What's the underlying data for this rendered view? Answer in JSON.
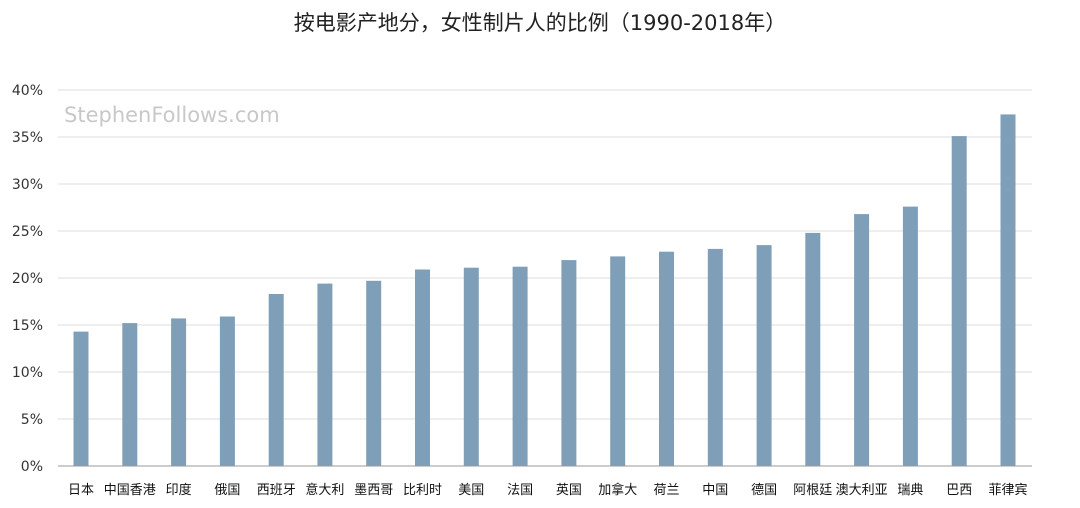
{
  "chart_data": {
    "type": "bar",
    "title": "按电影产地分，女性制片人的比例（1990-2018年）",
    "watermark": "StephenFollows.com",
    "xlabel": "",
    "ylabel": "",
    "ylim": [
      0,
      40
    ],
    "yticks": [
      0,
      5,
      10,
      15,
      20,
      25,
      30,
      35,
      40
    ],
    "ytick_labels": [
      "0%",
      "5%",
      "10%",
      "15%",
      "20%",
      "25%",
      "30%",
      "35%",
      "40%"
    ],
    "grid": true,
    "legend": "none",
    "bar_color": "#7f9fb9",
    "categories": [
      "日本",
      "中国香港",
      "印度",
      "俄国",
      "西班牙",
      "意大利",
      "墨西哥",
      "比利时",
      "美国",
      "法国",
      "英国",
      "加拿大",
      "荷兰",
      "中国",
      "德国",
      "阿根廷",
      "澳大利亚",
      "瑞典",
      "巴西",
      "菲律宾"
    ],
    "values": [
      14.3,
      15.2,
      15.7,
      15.9,
      18.3,
      19.4,
      19.7,
      20.9,
      21.1,
      21.2,
      21.9,
      22.3,
      22.8,
      23.1,
      23.5,
      24.8,
      26.8,
      27.6,
      35.1,
      37.4
    ]
  }
}
